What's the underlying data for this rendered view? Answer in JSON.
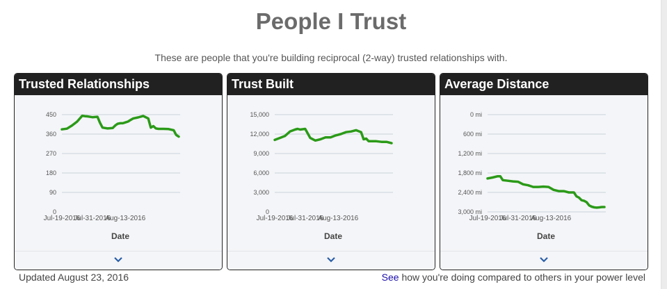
{
  "header": {
    "title": "People I Trust",
    "subtitle": "These are people that you're building reciprocal (2-way) trusted relationships with."
  },
  "cards": [
    {
      "title": "Trusted Relationships",
      "expand_icon": "chevron-down-icon"
    },
    {
      "title": "Trust Built",
      "expand_icon": "chevron-down-icon"
    },
    {
      "title": "Average Distance",
      "expand_icon": "chevron-down-icon"
    }
  ],
  "footer": {
    "updated": "Updated August 23, 2016",
    "see_link": "See",
    "see_rest": " how you're doing compared to others in your power level"
  },
  "colors": {
    "line": "#2b9a18",
    "grid": "#c8d2dc",
    "header_bg": "#212121",
    "panel_bg": "#f4f5f8"
  },
  "chart_data": [
    {
      "type": "line",
      "title": "Trusted Relationships",
      "xlabel": "Date",
      "x_ticks": [
        "Jul-19-2016",
        "Jul-31-2016",
        "Aug-13-2016"
      ],
      "y_ticks": [
        "450",
        "360",
        "270",
        "180",
        "90",
        "0"
      ],
      "ylim": [
        0,
        450
      ],
      "grid": true,
      "series": [
        {
          "x": [
            0,
            2,
            4,
            6,
            8,
            9,
            10,
            12,
            14,
            15,
            16,
            18,
            20,
            21,
            22,
            23,
            24,
            25,
            26,
            27,
            28,
            30,
            32,
            34,
            35,
            36,
            37,
            38,
            40,
            42,
            44,
            45,
            46
          ],
          "values": [
            382,
            385,
            400,
            418,
            445,
            443,
            442,
            438,
            440,
            412,
            390,
            386,
            388,
            400,
            408,
            410,
            410,
            414,
            418,
            425,
            432,
            437,
            444,
            432,
            390,
            397,
            386,
            384,
            384,
            383,
            378,
            356,
            348
          ]
        }
      ]
    },
    {
      "type": "line",
      "title": "Trust Built",
      "xlabel": "Date",
      "x_ticks": [
        "Jul-19-2016",
        "Jul-31-2016",
        "Aug-13-2016"
      ],
      "y_ticks": [
        "15,000",
        "12,000",
        "9,000",
        "6,000",
        "3,000",
        "0"
      ],
      "ylim": [
        0,
        15000
      ],
      "grid": true,
      "series": [
        {
          "x": [
            0,
            2,
            4,
            6,
            8,
            9,
            10,
            12,
            14,
            16,
            18,
            20,
            22,
            24,
            26,
            28,
            30,
            32,
            34,
            35,
            36,
            37,
            38,
            40,
            42,
            44,
            46
          ],
          "values": [
            11100,
            11400,
            11700,
            12400,
            12700,
            12800,
            12700,
            12800,
            11400,
            11000,
            11200,
            11500,
            11500,
            11800,
            12000,
            12300,
            12400,
            12600,
            12300,
            11200,
            11300,
            10900,
            10900,
            10900,
            10800,
            10800,
            10600
          ]
        }
      ]
    },
    {
      "type": "line",
      "title": "Average Distance",
      "xlabel": "Date",
      "x_ticks": [
        "Jul-19-2016",
        "Jul-31-2016",
        "Aug-13-2016"
      ],
      "y_ticks": [
        "0 mi",
        "600 mi",
        "1,200 mi",
        "1,800 mi",
        "2,400 mi",
        "3,000 mi"
      ],
      "ylim": [
        0,
        3000
      ],
      "y_inverted": true,
      "grid": true,
      "series": [
        {
          "x": [
            0,
            2,
            4,
            5,
            6,
            8,
            10,
            12,
            14,
            16,
            18,
            20,
            22,
            24,
            26,
            28,
            30,
            32,
            34,
            35,
            36,
            37,
            38,
            39,
            40,
            41,
            42,
            43,
            44,
            45,
            46
          ],
          "values": [
            1970,
            1940,
            1900,
            1900,
            2020,
            2040,
            2060,
            2070,
            2150,
            2180,
            2230,
            2230,
            2220,
            2230,
            2320,
            2360,
            2360,
            2400,
            2400,
            2520,
            2560,
            2640,
            2660,
            2700,
            2800,
            2840,
            2860,
            2870,
            2860,
            2850,
            2850
          ]
        }
      ]
    }
  ]
}
